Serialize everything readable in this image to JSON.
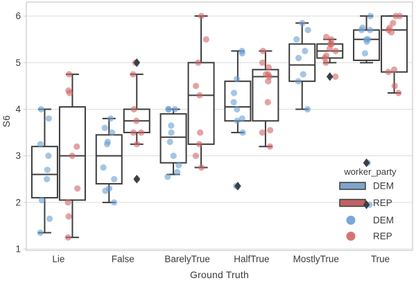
{
  "figure": {
    "xlabel": "Ground Truth",
    "ylabel": "S6",
    "legend": {
      "title": "worker_party",
      "entries": [
        {
          "kind": "box",
          "label": "DEM"
        },
        {
          "kind": "box",
          "label": "REP"
        },
        {
          "kind": "point",
          "label": "DEM"
        },
        {
          "kind": "point",
          "label": "REP"
        }
      ]
    }
  },
  "colors": {
    "dem_box_fill": "#7EA5C8",
    "rep_box_fill": "#BF6363",
    "dem_point": "#699FD2",
    "rep_point": "#D26565",
    "box_edge": "#3C3C3C",
    "flier": "#3A4049",
    "grid": "#DBDBDB",
    "spine": "#C9C9C9",
    "text": "#3A3A3A",
    "plot_bg": "#FFFFFF"
  },
  "chart_data": {
    "type": "grouped boxplot with overlaid jittered strip points",
    "title": "",
    "xlabel": "Ground Truth",
    "ylabel": "S6",
    "categories": [
      "Lie",
      "False",
      "BarelyTrue",
      "HalfTrue",
      "MostlyTrue",
      "True"
    ],
    "yticks": [
      1,
      2,
      3,
      4,
      5,
      6
    ],
    "ylim": [
      0.97,
      6.3
    ],
    "grid": "horizontal",
    "legend_position": "lower right inside axes",
    "legend_title": "worker_party",
    "series": [
      {
        "name": "DEM",
        "boxes": [
          {
            "category": "Lie",
            "whislo": 1.35,
            "q1": 2.1,
            "med": 2.6,
            "q3": 3.2,
            "whishi": 4.0,
            "outliers": []
          },
          {
            "category": "False",
            "whislo": 2.0,
            "q1": 2.4,
            "med": 3.0,
            "q3": 3.45,
            "whishi": 3.8,
            "outliers": []
          },
          {
            "category": "BarelyTrue",
            "whislo": 2.6,
            "q1": 2.85,
            "med": 3.4,
            "q3": 3.9,
            "whishi": 4.0,
            "outliers": []
          },
          {
            "category": "HalfTrue",
            "whislo": 3.5,
            "q1": 3.75,
            "med": 4.05,
            "q3": 4.6,
            "whishi": 5.25,
            "outliers": [
              2.35
            ]
          },
          {
            "category": "MostlyTrue",
            "whislo": 4.0,
            "q1": 4.6,
            "med": 4.95,
            "q3": 5.4,
            "whishi": 5.85,
            "outliers": []
          },
          {
            "category": "True",
            "whislo": 5.0,
            "q1": 5.05,
            "med": 5.5,
            "q3": 5.7,
            "whishi": 6.0,
            "outliers": [
              2.85,
              1.95
            ]
          }
        ],
        "points": [
          [
            4.0,
            3.8,
            3.25,
            3.0,
            2.7,
            2.5,
            2.05,
            1.65,
            1.35
          ],
          [
            3.8,
            3.6,
            3.5,
            3.3,
            3.25,
            2.75,
            2.5,
            2.3,
            2.25,
            2.0
          ],
          [
            4.0,
            4.0,
            4.0,
            3.65,
            3.5,
            3.3,
            3.0,
            2.8,
            2.65,
            2.55
          ],
          [
            5.25,
            5.2,
            4.65,
            4.35,
            4.15,
            4.0,
            3.8,
            3.75,
            3.5,
            2.35
          ],
          [
            5.85,
            5.7,
            5.5,
            5.25,
            5.1,
            4.75,
            4.6,
            4.0
          ],
          [
            6.0,
            5.75,
            5.7,
            5.7,
            5.5,
            5.5,
            5.45,
            5.2,
            2.85,
            1.95
          ]
        ]
      },
      {
        "name": "REP",
        "boxes": [
          {
            "category": "Lie",
            "whislo": 1.25,
            "q1": 2.05,
            "med": 3.0,
            "q3": 4.05,
            "whishi": 4.75,
            "outliers": []
          },
          {
            "category": "False",
            "whislo": 3.25,
            "q1": 3.5,
            "med": 3.75,
            "q3": 4.0,
            "whishi": 4.75,
            "outliers": [
              5.0,
              2.5
            ]
          },
          {
            "category": "BarelyTrue",
            "whislo": 2.75,
            "q1": 3.25,
            "med": 4.3,
            "q3": 5.0,
            "whishi": 6.0,
            "outliers": []
          },
          {
            "category": "HalfTrue",
            "whislo": 3.2,
            "q1": 3.75,
            "med": 4.7,
            "q3": 4.85,
            "whishi": 5.25,
            "outliers": []
          },
          {
            "category": "MostlyTrue",
            "whislo": 5.0,
            "q1": 5.1,
            "med": 5.25,
            "q3": 5.4,
            "whishi": 5.5,
            "outliers": [
              4.7
            ]
          },
          {
            "category": "True",
            "whislo": 4.35,
            "q1": 4.8,
            "med": 5.7,
            "q3": 6.0,
            "whishi": 6.0,
            "outliers": []
          }
        ],
        "points": [
          [
            4.75,
            4.4,
            4.35,
            3.2,
            3.0,
            2.3,
            2.0,
            1.7,
            1.25
          ],
          [
            5.0,
            4.75,
            4.0,
            3.75,
            3.5,
            3.5,
            3.25,
            2.5
          ],
          [
            6.0,
            5.5,
            5.0,
            4.5,
            4.3,
            3.5,
            3.25,
            3.0,
            2.75
          ],
          [
            5.25,
            5.0,
            4.9,
            4.75,
            4.75,
            4.7,
            4.6,
            4.15,
            3.55,
            3.5,
            3.2
          ],
          [
            5.55,
            5.5,
            5.4,
            5.4,
            5.3,
            5.25,
            5.15,
            5.1,
            5.0,
            4.7
          ],
          [
            6.0,
            6.0,
            5.85,
            5.75,
            5.7,
            5.65,
            4.85,
            4.8,
            4.5,
            4.35
          ]
        ]
      }
    ]
  }
}
